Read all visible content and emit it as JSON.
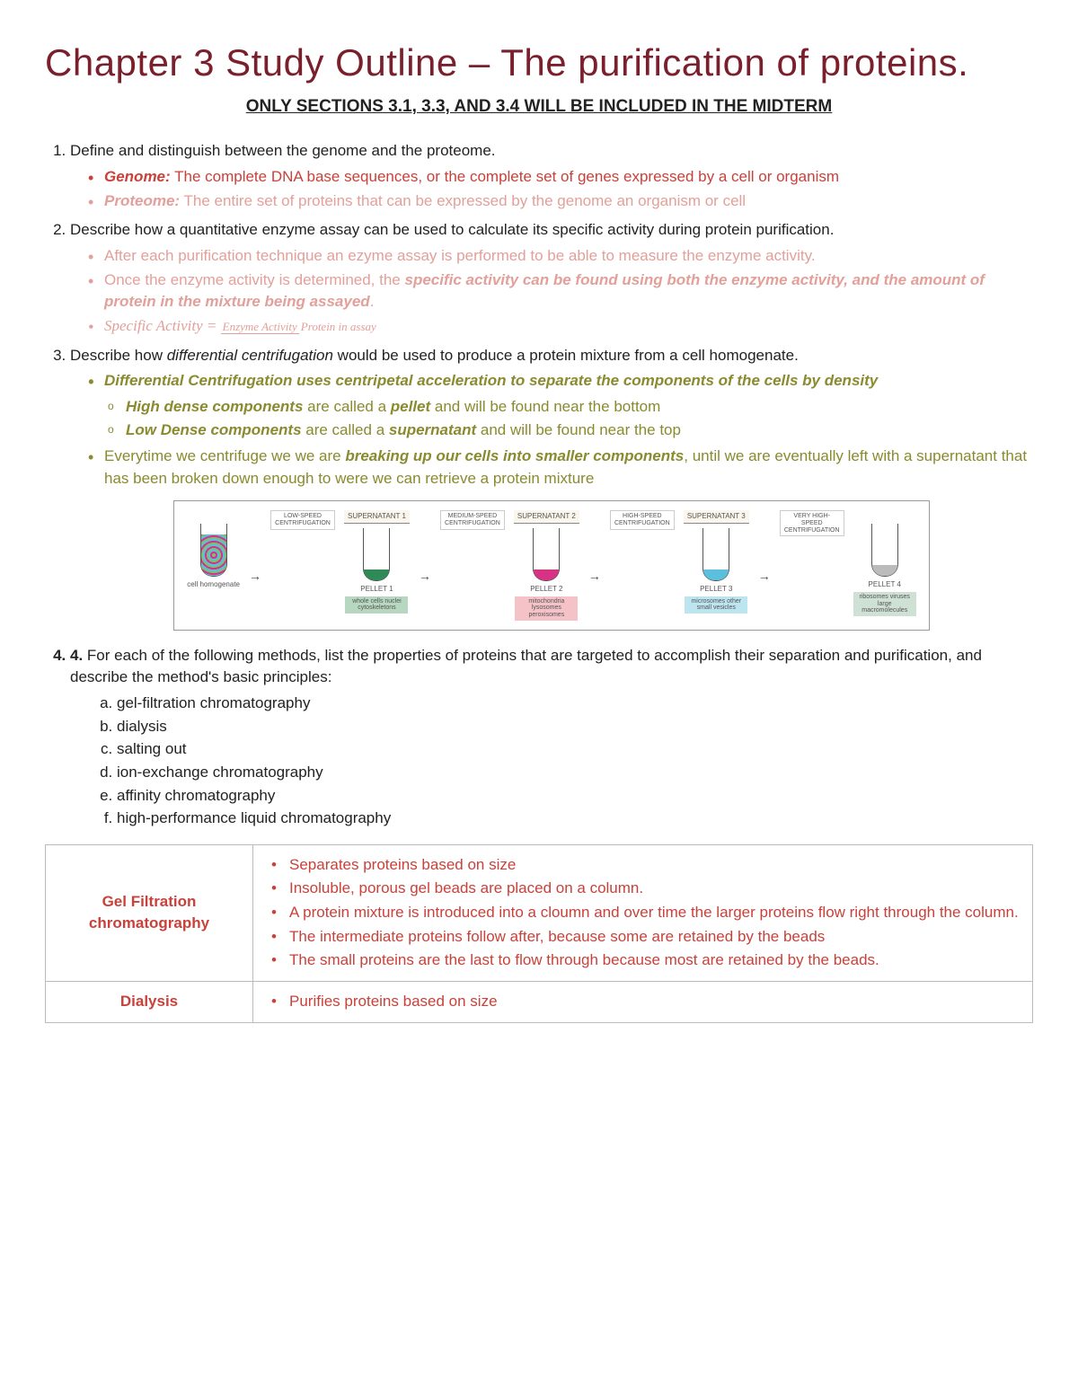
{
  "title": "Chapter 3 Study Outline – The purification of proteins.",
  "subtitle": "ONLY SECTIONS 3.1, 3.3, AND 3.4 WILL BE INCLUDED IN THE MIDTERM",
  "item1": {
    "prompt": "Define and distinguish between the genome and the proteome.",
    "genome_label": "Genome:",
    "genome_text": " The complete DNA base sequences, or the complete set of genes expressed by a cell or organism",
    "proteome_label": "Proteome:",
    "proteome_text": " The entire set of proteins that can be expressed by the genome an organism or cell"
  },
  "item2": {
    "prompt": "Describe how a quantitative enzyme assay can be used to calculate its specific activity during protein purification.",
    "b1": "After each purification technique an ezyme assay is performed to be able to measure the enzyme activity.",
    "b2_a": "Once the enzyme activity is determined, the ",
    "b2_b": "specific activity can be found using both the enzyme activity, and the amount of protein in the mixture being assayed",
    "b2_c": ".",
    "formula_lhs": "Specific Activity = ",
    "formula_num": "Enzyme Activity",
    "formula_den": "Protein in assay"
  },
  "item3": {
    "prompt_a": "Describe how ",
    "prompt_i": "differential centrifugation",
    "prompt_b": " would be used to produce a protein mixture from a cell homogenate.",
    "b1": "Differential Centrifugation uses centripetal acceleration to separate the components of the cells by density",
    "s1_a": "High dense components",
    "s1_b": " are called a ",
    "s1_c": "pellet",
    "s1_d": " and will be found near the bottom",
    "s2_a": "Low Dense components",
    "s2_b": " are called a ",
    "s2_c": "supernatant",
    "s2_d": " and will be found near the top",
    "b2_a": "Everytime we centrifuge we we are ",
    "b2_b": "breaking up our cells into smaller components",
    "b2_c": ", until we are eventually left with a supernatant that has been broken down enough to were we can retrieve a protein mixture"
  },
  "item4": {
    "prompt": "For each of the following methods, list the properties of proteins that are targeted to accomplish their separation and purification, and describe the method's basic principles:",
    "a": "gel-filtration chromatography",
    "b": "dialysis",
    "c": "salting out",
    "d": "ion-exchange chromatography",
    "e": "affinity chromatography",
    "f": "high-performance liquid chromatography"
  },
  "table": {
    "r1_head": "Gel Filtration chromatography",
    "r1": {
      "l1": "Separates proteins based on size",
      "l2": "Insoluble, porous gel beads are placed on a column.",
      "l3": "A protein mixture is introduced into a cloumn and over time the larger proteins flow right through the column.",
      "l4": "The intermediate proteins follow after, because some are retained by the beads",
      "l5": "The small proteins are the last to flow through because most are retained by the beads."
    },
    "r2_head": "Dialysis",
    "r2_l1": "Purifies proteins based on size"
  },
  "diagram": {
    "homog_caption": "cell homogenate",
    "low": "LOW-SPEED CENTRIFUGATION",
    "med": "MEDIUM-SPEED CENTRIFUGATION",
    "high": "HIGH-SPEED CENTRIFUGATION",
    "vhigh": "VERY HIGH-SPEED CENTRIFUGATION",
    "sup1": "SUPERNATANT 1",
    "sup2": "SUPERNATANT 2",
    "sup3": "SUPERNATANT 3",
    "p1": "PELLET 1",
    "p1d": "whole cells nuclei cytoskeletons",
    "p2": "PELLET 2",
    "p2d": "mitochondria lysosomes peroxisomes",
    "p3": "PELLET 3",
    "p3d": "microsomes other small vesicles",
    "p4": "PELLET 4",
    "p4d": "ribosomes viruses large macromolecules",
    "pellet_colors": [
      "#2e8b57",
      "#d63384",
      "#5bc0de",
      "#bbbbbb"
    ],
    "plabel_bg": [
      "#b7d7c0",
      "#f5c2c7",
      "#bde5f0",
      "#cfe0d4"
    ]
  }
}
